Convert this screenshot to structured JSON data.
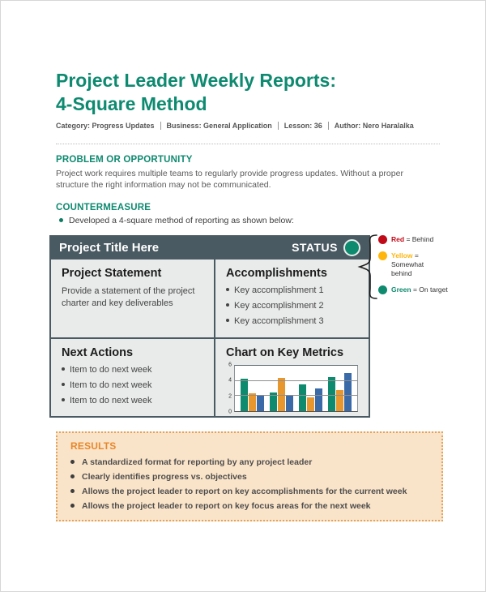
{
  "theme": {
    "brand": "#0E8A70",
    "dark_slate": "#4A5A62",
    "results_accent": "#E8872B",
    "results_bg": "#FAE4C9",
    "results_border": "#E2A35B"
  },
  "header": {
    "title_line1": "Project Leader Weekly Reports:",
    "title_line2": "4-Square Method",
    "meta": [
      "Category: Progress Updates",
      "Business: General Application",
      "Lesson: 36",
      "Author: Nero Haralalka"
    ]
  },
  "problem": {
    "heading": "PROBLEM OR OPPORTUNITY",
    "body": "Project work requires multiple teams to regularly provide progress updates. Without a proper structure the right information may not be communicated."
  },
  "countermeasure": {
    "heading": "COUNTERMEASURE",
    "bullet": "Developed a 4-square method of reporting as shown below:"
  },
  "four_square": {
    "title_bar": {
      "title": "Project Title Here",
      "status_label": "STATUS",
      "status_color": "#0E8A6E"
    },
    "project_statement": {
      "heading": "Project Statement",
      "body": "Provide a statement of the project charter and key deliverables"
    },
    "accomplishments": {
      "heading": "Accomplishments",
      "bullets": [
        "Key accomplishment 1",
        "Key accomplishment 2",
        "Key accomplishment 3"
      ]
    },
    "next_actions": {
      "heading": "Next Actions",
      "bullets": [
        "Item to do next week",
        "Item to do next week",
        "Item to do next week"
      ]
    },
    "chart_quadrant_heading": "Chart on Key Metrics"
  },
  "chart_data": {
    "type": "bar",
    "title": "Chart on Key Metrics",
    "categories": [
      "",
      "",
      "",
      ""
    ],
    "series": [
      {
        "name": "green",
        "color": "#0E8A6E",
        "values": [
          4.3,
          2.5,
          3.5,
          4.5
        ]
      },
      {
        "name": "orange",
        "color": "#E8962E",
        "values": [
          2.4,
          4.4,
          1.8,
          2.8
        ]
      },
      {
        "name": "blue",
        "color": "#3A6BA8",
        "values": [
          2.0,
          2.0,
          3.0,
          5.0
        ]
      }
    ],
    "xlabel": "",
    "ylabel": "",
    "ylim": [
      0,
      6
    ],
    "yticks": [
      0,
      2,
      4,
      6
    ],
    "grid": true,
    "legend_position": "none"
  },
  "status_legend": {
    "items": [
      {
        "name": "Red",
        "suffix": "= Behind",
        "color": "#C00A18"
      },
      {
        "name": "Yellow",
        "suffix": "= Somewhat behind",
        "color": "#FFB60C"
      },
      {
        "name": "Green",
        "suffix": "= On target",
        "color": "#0E8A6E"
      }
    ]
  },
  "results": {
    "heading": "RESULTS",
    "bullets": [
      "A standardized format for reporting by any project leader",
      "Clearly identifies progress vs. objectives",
      "Allows the project leader to report on key accomplishments for the current week",
      "Allows the project leader to report on key focus areas for the next week"
    ]
  }
}
